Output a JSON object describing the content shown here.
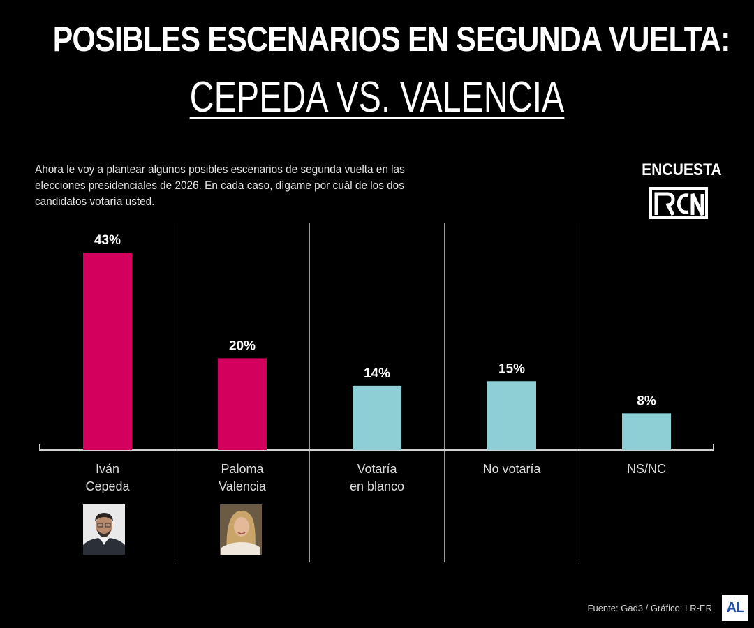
{
  "header": {
    "title": "POSIBLES ESCENARIOS EN SEGUNDA VUELTA:",
    "subtitle": "CEPEDA VS. VALENCIA"
  },
  "question": "Ahora le voy a plantear algunos posibles escenarios de segunda vuelta en las elecciones presidenciales de 2026. En cada caso, dígame por cuál de los dos candidatos votaría usted.",
  "brand": {
    "label": "ENCUESTA",
    "logo": "RCN"
  },
  "footer": {
    "source": "Fuente: Gad3 / Gráfico: LR-ER",
    "badge": "AL"
  },
  "colors": {
    "candidate": "#d4005e",
    "other": "#8ecfd6",
    "background": "#000000",
    "divider": "#9a9a9a"
  },
  "chart_data": {
    "type": "bar",
    "title": "POSIBLES ESCENARIOS EN SEGUNDA VUELTA: CEPEDA VS. VALENCIA",
    "categories": [
      [
        "Iván",
        "Cepeda"
      ],
      [
        "Paloma",
        "Valencia"
      ],
      [
        "Votaría",
        "en blanco"
      ],
      [
        "No votaría"
      ],
      [
        "NS/NC"
      ]
    ],
    "values": [
      43,
      20,
      14,
      15,
      8
    ],
    "value_labels": [
      "43%",
      "20%",
      "14%",
      "15%",
      "8%"
    ],
    "bar_colors": [
      "#d4005e",
      "#d4005e",
      "#8ecfd6",
      "#8ecfd6",
      "#8ecfd6"
    ],
    "ylim": [
      0,
      43
    ],
    "unit": "%",
    "grid": false,
    "photos": [
      "Iván Cepeda",
      "Paloma Valencia"
    ]
  }
}
